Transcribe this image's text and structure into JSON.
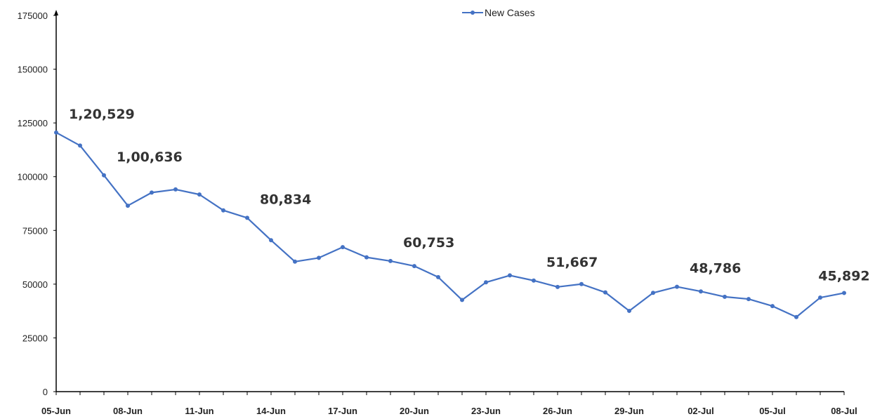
{
  "chart_data": {
    "type": "line",
    "title": "",
    "xlabel": "",
    "ylabel": "",
    "ylim": [
      0,
      175000
    ],
    "y_ticks": [
      "0",
      "25000",
      "50000",
      "75000",
      "100000",
      "125000",
      "150000",
      "175000"
    ],
    "x_tick_labels": [
      "05-Jun",
      "08-Jun",
      "11-Jun",
      "14-Jun",
      "17-Jun",
      "20-Jun",
      "23-Jun",
      "26-Jun",
      "29-Jun",
      "02-Jul",
      "05-Jul",
      "08-Jul"
    ],
    "legend": "top-center",
    "grid": false,
    "series": [
      {
        "name": "New Cases",
        "color": "#4472c4",
        "x": [
          "05-Jun",
          "06-Jun",
          "07-Jun",
          "08-Jun",
          "09-Jun",
          "10-Jun",
          "11-Jun",
          "12-Jun",
          "13-Jun",
          "14-Jun",
          "15-Jun",
          "16-Jun",
          "17-Jun",
          "18-Jun",
          "19-Jun",
          "20-Jun",
          "21-Jun",
          "22-Jun",
          "23-Jun",
          "24-Jun",
          "25-Jun",
          "26-Jun",
          "27-Jun",
          "28-Jun",
          "29-Jun",
          "30-Jun",
          "01-Jul",
          "02-Jul",
          "03-Jul",
          "04-Jul",
          "05-Jul",
          "06-Jul",
          "07-Jul",
          "08-Jul"
        ],
        "values": [
          120529,
          114460,
          100636,
          86498,
          92596,
          94052,
          91702,
          84332,
          80834,
          70421,
          60471,
          62224,
          67208,
          62480,
          60753,
          58419,
          53256,
          42640,
          50848,
          54069,
          51667,
          48698,
          50040,
          46148,
          37566,
          45951,
          48786,
          46617,
          44111,
          43071,
          39796,
          34703,
          43733,
          45892
        ]
      }
    ],
    "annotations": [
      {
        "x": "05-Jun",
        "text": "1,20,529"
      },
      {
        "x": "07-Jun",
        "text": "1,00,636"
      },
      {
        "x": "13-Jun",
        "text": "80,834"
      },
      {
        "x": "19-Jun",
        "text": "60,753"
      },
      {
        "x": "25-Jun",
        "text": "51,667"
      },
      {
        "x": "01-Jul",
        "text": "48,786"
      },
      {
        "x": "08-Jul",
        "text": "45,892"
      }
    ]
  }
}
